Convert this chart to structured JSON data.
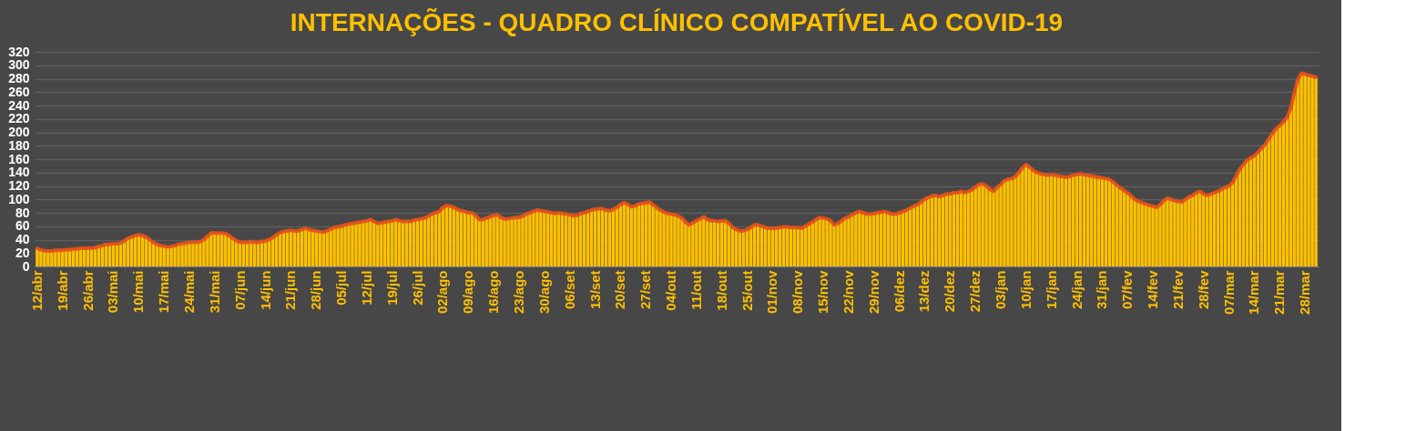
{
  "chart_data": {
    "type": "bar",
    "title": "INTERNAÇÕES -  QUADRO CLÍNICO COMPATÍVEL AO COVID-19",
    "categories": [
      "12/abr",
      null,
      null,
      null,
      null,
      null,
      null,
      "19/abr",
      null,
      null,
      null,
      null,
      null,
      null,
      "26/abr",
      null,
      null,
      null,
      null,
      null,
      null,
      "03/mai",
      null,
      null,
      null,
      null,
      null,
      null,
      "10/mai",
      null,
      null,
      null,
      null,
      null,
      null,
      "17/mai",
      null,
      null,
      null,
      null,
      null,
      null,
      "24/mai",
      null,
      null,
      null,
      null,
      null,
      null,
      "31/mai",
      null,
      null,
      null,
      null,
      null,
      null,
      "07/jun",
      null,
      null,
      null,
      null,
      null,
      null,
      "14/jun",
      null,
      null,
      null,
      null,
      null,
      null,
      "21/jun",
      null,
      null,
      null,
      null,
      null,
      null,
      "28/jun",
      null,
      null,
      null,
      null,
      null,
      null,
      "05/jul",
      null,
      null,
      null,
      null,
      null,
      null,
      "12/jul",
      null,
      null,
      null,
      null,
      null,
      null,
      "19/jul",
      null,
      null,
      null,
      null,
      null,
      null,
      "26/jul",
      null,
      null,
      null,
      null,
      null,
      null,
      "02/ago",
      null,
      null,
      null,
      null,
      null,
      null,
      "09/ago",
      null,
      null,
      null,
      null,
      null,
      null,
      "16/ago",
      null,
      null,
      null,
      null,
      null,
      null,
      "23/ago",
      null,
      null,
      null,
      null,
      null,
      null,
      "30/ago",
      null,
      null,
      null,
      null,
      null,
      null,
      "06/set",
      null,
      null,
      null,
      null,
      null,
      null,
      "13/set",
      null,
      null,
      null,
      null,
      null,
      null,
      "20/set",
      null,
      null,
      null,
      null,
      null,
      null,
      "27/set",
      null,
      null,
      null,
      null,
      null,
      null,
      "04/out",
      null,
      null,
      null,
      null,
      null,
      null,
      "11/out",
      null,
      null,
      null,
      null,
      null,
      null,
      "18/out",
      null,
      null,
      null,
      null,
      null,
      null,
      "25/out",
      null,
      null,
      null,
      null,
      null,
      null,
      "01/nov",
      null,
      null,
      null,
      null,
      null,
      null,
      "08/nov",
      null,
      null,
      null,
      null,
      null,
      null,
      "15/nov",
      null,
      null,
      null,
      null,
      null,
      null,
      "22/nov",
      null,
      null,
      null,
      null,
      null,
      null,
      "29/nov",
      null,
      null,
      null,
      null,
      null,
      null,
      "06/dez",
      null,
      null,
      null,
      null,
      null,
      null,
      "13/dez",
      null,
      null,
      null,
      null,
      null,
      null,
      "20/dez",
      null,
      null,
      null,
      null,
      null,
      null,
      "27/dez",
      null,
      null,
      null,
      null,
      null,
      null,
      "03/jan",
      null,
      null,
      null,
      null,
      null,
      null,
      "10/jan",
      null,
      null,
      null,
      null,
      null,
      null,
      "17/jan",
      null,
      null,
      null,
      null,
      null,
      null,
      "24/jan",
      null,
      null,
      null,
      null,
      null,
      null,
      "31/jan",
      null,
      null,
      null,
      null,
      null,
      null,
      "07/fev",
      null,
      null,
      null,
      null,
      null,
      null,
      "14/fev",
      null,
      null,
      null,
      null,
      null,
      null,
      "21/fev",
      null,
      null,
      null,
      null,
      null,
      null,
      "28/fev",
      null,
      null,
      null,
      null,
      null,
      null,
      "07/mar",
      null,
      null,
      null,
      null,
      null,
      null,
      "14/mar",
      null,
      null,
      null,
      null,
      null,
      null,
      "21/mar",
      null,
      null,
      null,
      null,
      null,
      null,
      "28/mar",
      null,
      null,
      null
    ],
    "series": [
      {
        "color": "#ffc000",
        "values": [
          27,
          25,
          23,
          23,
          23,
          24,
          24,
          24,
          25,
          25,
          26,
          26,
          27,
          27,
          27,
          27,
          28,
          30,
          31,
          33,
          33,
          34,
          34,
          35,
          38,
          42,
          44,
          46,
          47,
          46,
          44,
          40,
          36,
          33,
          31,
          30,
          29,
          30,
          31,
          33,
          34,
          35,
          36,
          36,
          36,
          37,
          40,
          45,
          50,
          50,
          50,
          50,
          49,
          46,
          42,
          38,
          36,
          36,
          36,
          37,
          36,
          36,
          37,
          38,
          40,
          43,
          47,
          50,
          52,
          53,
          54,
          53,
          53,
          55,
          57,
          55,
          54,
          53,
          52,
          51,
          53,
          56,
          58,
          59,
          60,
          62,
          63,
          64,
          65,
          66,
          67,
          68,
          70,
          67,
          64,
          65,
          66,
          67,
          68,
          70,
          68,
          67,
          67,
          67,
          69,
          70,
          71,
          72,
          75,
          78,
          80,
          82,
          88,
          91,
          90,
          88,
          85,
          83,
          82,
          80,
          80,
          76,
          70,
          70,
          72,
          74,
          76,
          77,
          73,
          71,
          71,
          72,
          73,
          73,
          75,
          78,
          80,
          82,
          84,
          83,
          82,
          81,
          80,
          79,
          80,
          79,
          78,
          77,
          76,
          76,
          79,
          80,
          82,
          84,
          85,
          86,
          86,
          84,
          83,
          85,
          88,
          92,
          95,
          93,
          89,
          90,
          93,
          94,
          95,
          96,
          92,
          88,
          84,
          81,
          79,
          78,
          77,
          75,
          72,
          66,
          62,
          65,
          68,
          71,
          74,
          70,
          68,
          68,
          67,
          68,
          68,
          64,
          58,
          55,
          53,
          53,
          55,
          58,
          62,
          62,
          60,
          58,
          57,
          57,
          57,
          58,
          59,
          59,
          58,
          58,
          58,
          57,
          60,
          63,
          66,
          70,
          73,
          72,
          71,
          68,
          62,
          64,
          68,
          72,
          74,
          77,
          80,
          82,
          80,
          78,
          78,
          79,
          80,
          81,
          82,
          80,
          78,
          78,
          80,
          82,
          84,
          87,
          90,
          92,
          96,
          100,
          103,
          105,
          106,
          104,
          106,
          108,
          108,
          110,
          110,
          112,
          110,
          112,
          114,
          118,
          122,
          123,
          120,
          115,
          112,
          118,
          122,
          128,
          130,
          131,
          134,
          140,
          147,
          152,
          148,
          143,
          140,
          138,
          137,
          136,
          137,
          136,
          135,
          134,
          133,
          134,
          136,
          137,
          138,
          137,
          136,
          135,
          134,
          133,
          132,
          131,
          130,
          126,
          121,
          117,
          113,
          110,
          105,
          100,
          97,
          95,
          93,
          91,
          90,
          88,
          92,
          98,
          102,
          100,
          98,
          97,
          96,
          100,
          104,
          106,
          110,
          112,
          108,
          106,
          108,
          110,
          112,
          115,
          118,
          120,
          125,
          135,
          145,
          152,
          158,
          162,
          165,
          170,
          176,
          182,
          190,
          198,
          205,
          210,
          215,
          222,
          235,
          258,
          278,
          288,
          287,
          285,
          284,
          282
        ]
      },
      {
        "type": "line",
        "color": "#e8501a",
        "values": [
          27,
          25,
          23,
          23,
          23,
          24,
          24,
          24,
          25,
          25,
          26,
          26,
          27,
          27,
          27,
          27,
          28,
          30,
          31,
          33,
          33,
          34,
          34,
          35,
          38,
          42,
          44,
          46,
          47,
          46,
          44,
          40,
          36,
          33,
          31,
          30,
          29,
          30,
          31,
          33,
          34,
          35,
          36,
          36,
          36,
          37,
          40,
          45,
          50,
          50,
          50,
          50,
          49,
          46,
          42,
          38,
          36,
          36,
          36,
          37,
          36,
          36,
          37,
          38,
          40,
          43,
          47,
          50,
          52,
          53,
          54,
          53,
          53,
          55,
          57,
          55,
          54,
          53,
          52,
          51,
          53,
          56,
          58,
          59,
          60,
          62,
          63,
          64,
          65,
          66,
          67,
          68,
          70,
          67,
          64,
          65,
          66,
          67,
          68,
          70,
          68,
          67,
          67,
          67,
          69,
          70,
          71,
          72,
          75,
          78,
          80,
          82,
          88,
          91,
          90,
          88,
          85,
          83,
          82,
          80,
          80,
          76,
          70,
          70,
          72,
          74,
          76,
          77,
          73,
          71,
          71,
          72,
          73,
          73,
          75,
          78,
          80,
          82,
          84,
          83,
          82,
          81,
          80,
          79,
          80,
          79,
          78,
          77,
          76,
          76,
          79,
          80,
          82,
          84,
          85,
          86,
          86,
          84,
          83,
          85,
          88,
          92,
          95,
          93,
          89,
          90,
          93,
          94,
          95,
          96,
          92,
          88,
          84,
          81,
          79,
          78,
          77,
          75,
          72,
          66,
          62,
          65,
          68,
          71,
          74,
          70,
          68,
          68,
          67,
          68,
          68,
          64,
          58,
          55,
          53,
          53,
          55,
          58,
          62,
          62,
          60,
          58,
          57,
          57,
          57,
          58,
          59,
          59,
          58,
          58,
          58,
          57,
          60,
          63,
          66,
          70,
          73,
          72,
          71,
          68,
          62,
          64,
          68,
          72,
          74,
          77,
          80,
          82,
          80,
          78,
          78,
          79,
          80,
          81,
          82,
          80,
          78,
          78,
          80,
          82,
          84,
          87,
          90,
          92,
          96,
          100,
          103,
          105,
          106,
          104,
          106,
          108,
          108,
          110,
          110,
          112,
          110,
          112,
          114,
          118,
          122,
          123,
          120,
          115,
          112,
          118,
          122,
          128,
          130,
          131,
          134,
          140,
          147,
          152,
          148,
          143,
          140,
          138,
          137,
          136,
          137,
          136,
          135,
          134,
          133,
          134,
          136,
          137,
          138,
          137,
          136,
          135,
          134,
          133,
          132,
          131,
          130,
          126,
          121,
          117,
          113,
          110,
          105,
          100,
          97,
          95,
          93,
          91,
          90,
          88,
          92,
          98,
          102,
          100,
          98,
          97,
          96,
          100,
          104,
          106,
          110,
          112,
          108,
          106,
          108,
          110,
          112,
          115,
          118,
          120,
          125,
          135,
          145,
          152,
          158,
          162,
          165,
          170,
          176,
          182,
          190,
          198,
          205,
          210,
          215,
          222,
          235,
          258,
          278,
          288,
          287,
          285,
          284,
          282
        ]
      }
    ],
    "ylim": [
      0,
      320
    ],
    "yticks": [
      0,
      20,
      40,
      60,
      80,
      100,
      120,
      140,
      160,
      180,
      200,
      220,
      240,
      260,
      280,
      300,
      320
    ],
    "grid": "y",
    "line_style": "solid",
    "marker": "none"
  }
}
